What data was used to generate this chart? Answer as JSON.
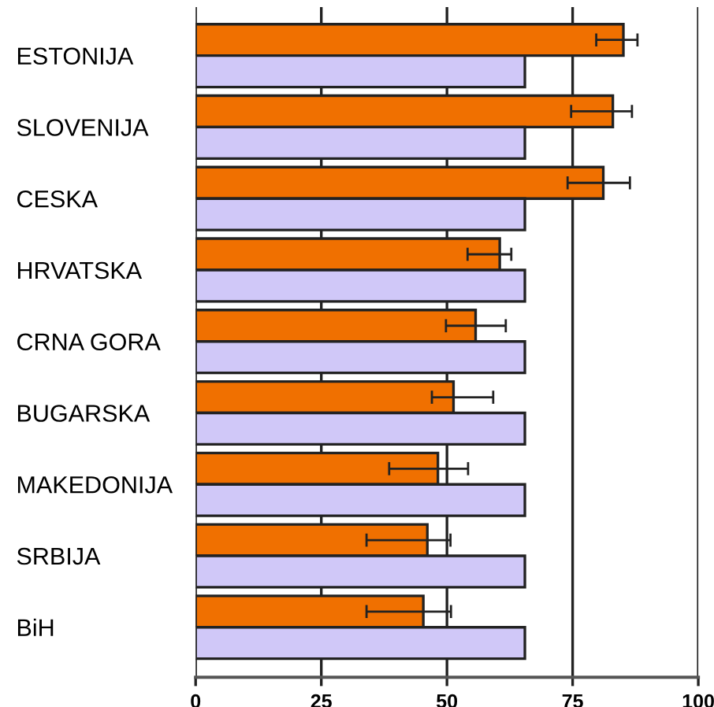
{
  "chart_data": {
    "type": "bar",
    "orientation": "horizontal",
    "categories": [
      "ESTONIJA",
      "SLOVENIJA",
      "CESKA",
      "HRVATSKA",
      "CRNA GORA",
      "BUGARSKA",
      "MAKEDONIJA",
      "SRBIJA",
      "BiH"
    ],
    "series": [
      {
        "color": "#f07000",
        "values": [
          85.1,
          83.0,
          81.1,
          60.5,
          55.7,
          51.3,
          48.2,
          46.1,
          45.3
        ],
        "errors": [
          [
            79.7,
            87.9
          ],
          [
            74.7,
            86.8
          ],
          [
            74.0,
            86.4
          ],
          [
            54.1,
            62.8
          ],
          [
            49.8,
            61.7
          ],
          [
            47.0,
            59.2
          ],
          [
            38.5,
            54.2
          ],
          [
            34.0,
            50.7
          ],
          [
            34.0,
            50.8
          ]
        ]
      },
      {
        "color": "#d0c8f8",
        "values": [
          65.5,
          65.5,
          65.5,
          65.5,
          65.5,
          65.5,
          65.5,
          65.5,
          65.5
        ]
      }
    ],
    "xlim": [
      0,
      100
    ],
    "xticks": [
      0,
      25,
      50,
      75,
      100
    ],
    "grid": "x"
  }
}
